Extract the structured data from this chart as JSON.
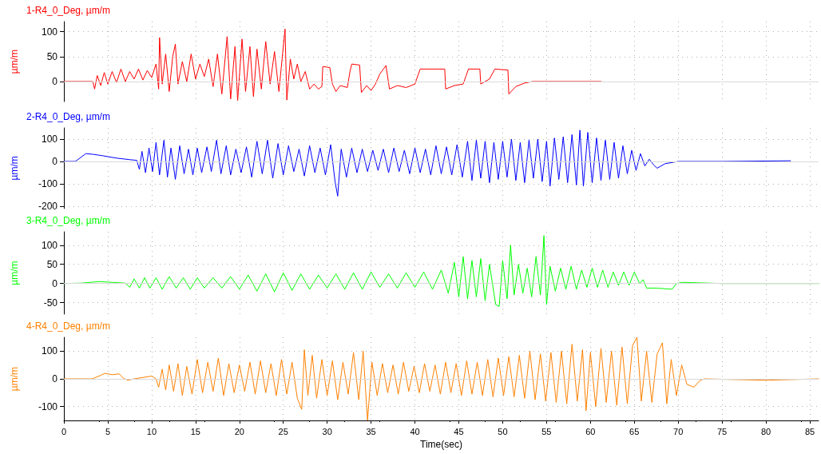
{
  "chart_data": [
    {
      "type": "line",
      "title": "1-R4_0_Deg, µm/m",
      "ylabel": "µm/m",
      "xlim": [
        0,
        86
      ],
      "xticks": [
        0,
        5,
        10,
        15,
        20,
        25,
        30,
        35,
        40,
        45,
        50,
        55,
        60,
        65,
        70,
        75,
        80,
        85
      ],
      "ylim": [
        -40,
        120
      ],
      "yticks": [
        0,
        50,
        100
      ],
      "grid": true,
      "tick_labels": "y",
      "ref_lines": [
        {
          "axis": "y",
          "value": 0,
          "color": "#d8d8d8"
        }
      ],
      "x": [
        0,
        3.3,
        3.5,
        3.8,
        4.2,
        4.6,
        5,
        5.5,
        6,
        6.5,
        7,
        7.5,
        8,
        8.5,
        9,
        9.5,
        10,
        10.5,
        10.8,
        10.9,
        11.2,
        11.6,
        12,
        12.4,
        12.7,
        13,
        13.5,
        14,
        14.5,
        15,
        15.5,
        16,
        16.5,
        17,
        17.5,
        18,
        18.6,
        19,
        19.5,
        19.8,
        20.3,
        20.7,
        21.2,
        21.6,
        22,
        22.5,
        23,
        23.5,
        24,
        24.5,
        25.2,
        25.4,
        25.8,
        26.2,
        26.6,
        27,
        27.5,
        28,
        28.5,
        29,
        29.4,
        29.5,
        30.3,
        30.6,
        31,
        31.5,
        32.3,
        32.6,
        32.8,
        33.7,
        33.9,
        34.5,
        35,
        35.5,
        36,
        36.7,
        37.1,
        38,
        39,
        40,
        40.2,
        40.6,
        43.4,
        43.5,
        44.5,
        45.5,
        45.8,
        46.1,
        47.4,
        47.5,
        48.5,
        49.1,
        50.6,
        50.7,
        51.5,
        52.5,
        53.4,
        61.2
      ],
      "series": [
        {
          "color": "#ff0000",
          "values": [
            0,
            0,
            -15,
            12,
            -8,
            18,
            -5,
            20,
            -2,
            25,
            0,
            20,
            5,
            25,
            3,
            22,
            8,
            35,
            -15,
            88,
            -5,
            55,
            -20,
            50,
            75,
            -5,
            40,
            0,
            55,
            5,
            35,
            10,
            45,
            -10,
            55,
            -25,
            90,
            -35,
            70,
            -38,
            85,
            -20,
            70,
            -30,
            65,
            -15,
            80,
            -5,
            60,
            -20,
            105,
            -37,
            45,
            5,
            35,
            0,
            20,
            -15,
            -5,
            -15,
            -10,
            30,
            28,
            -5,
            -20,
            -8,
            -12,
            20,
            35,
            33,
            -22,
            -8,
            -18,
            -5,
            15,
            32,
            -15,
            -8,
            -12,
            -5,
            5,
            25,
            25,
            -15,
            -8,
            -5,
            10,
            25,
            25,
            -5,
            5,
            25,
            23,
            -25,
            -10,
            -3,
            0,
            0
          ]
        }
      ]
    },
    {
      "type": "line",
      "title": "2-R4_0_Deg, µm/m",
      "ylabel": "µm/m",
      "xlim": [
        0,
        86
      ],
      "xticks": [
        0,
        5,
        10,
        15,
        20,
        25,
        30,
        35,
        40,
        45,
        50,
        55,
        60,
        65,
        70,
        75,
        80,
        85
      ],
      "ylim": [
        -210,
        150
      ],
      "yticks": [
        -200,
        -100,
        0,
        100
      ],
      "grid": true,
      "tick_labels": "y",
      "ref_lines": [
        {
          "axis": "y",
          "value": 0,
          "color": "#d8d8d8"
        }
      ],
      "x": [
        0,
        1.3,
        2,
        2.5,
        3.3,
        4.5,
        6,
        7.5,
        8.3,
        8.6,
        8.9,
        9.3,
        9.7,
        10.1,
        10.5,
        10.9,
        11.4,
        11.8,
        12.2,
        12.7,
        13.2,
        13.7,
        14.2,
        14.7,
        15.2,
        15.7,
        16.3,
        16.8,
        17.4,
        17.9,
        18.5,
        19,
        19.6,
        20.2,
        20.8,
        21.4,
        22,
        22.6,
        23.2,
        23.8,
        24.4,
        25,
        25.6,
        26.2,
        26.8,
        27.4,
        28,
        28.6,
        29.2,
        29.8,
        30.4,
        30.9,
        31.2,
        31.6,
        32.2,
        32.8,
        33.4,
        34,
        34.6,
        35.2,
        35.8,
        36.4,
        37,
        37.6,
        38.2,
        38.8,
        39.4,
        40,
        40.6,
        41.2,
        41.8,
        42.4,
        43,
        43.6,
        44.2,
        44.8,
        45.4,
        46,
        46.5,
        47,
        47.5,
        48,
        48.5,
        49,
        49.5,
        50,
        50.5,
        51,
        51.5,
        52,
        52.5,
        53,
        53.5,
        54,
        54.5,
        55,
        55.4,
        55.9,
        56.4,
        56.9,
        57.4,
        57.9,
        58.4,
        58.8,
        59.2,
        59.7,
        60.2,
        60.7,
        61.2,
        61.7,
        62.2,
        62.7,
        63.2,
        63.7,
        64.2,
        64.7,
        65.2,
        65.7,
        66.2,
        66.7,
        67.2,
        67.6,
        68.5,
        70,
        75,
        82.8
      ],
      "series": [
        {
          "color": "#0000ff",
          "values": [
            0,
            0,
            20,
            35,
            32,
            25,
            15,
            8,
            5,
            -35,
            45,
            -50,
            60,
            -45,
            85,
            -60,
            95,
            -70,
            60,
            -80,
            70,
            -55,
            55,
            -60,
            60,
            -50,
            65,
            -45,
            95,
            -55,
            70,
            -60,
            55,
            -50,
            65,
            -70,
            90,
            -55,
            95,
            -75,
            80,
            -60,
            70,
            -45,
            55,
            -65,
            70,
            -50,
            60,
            -60,
            75,
            -90,
            -155,
            55,
            -70,
            60,
            -50,
            55,
            -45,
            50,
            -40,
            55,
            -50,
            60,
            -45,
            50,
            -55,
            60,
            -50,
            55,
            -60,
            70,
            -55,
            65,
            -60,
            75,
            -70,
            90,
            -85,
            95,
            -75,
            90,
            -95,
            85,
            -80,
            90,
            -70,
            100,
            -85,
            85,
            -95,
            95,
            -75,
            100,
            -90,
            90,
            -110,
            105,
            -80,
            110,
            -95,
            120,
            -105,
            140,
            -110,
            130,
            -95,
            105,
            -85,
            95,
            -80,
            85,
            -75,
            70,
            -55,
            50,
            -40,
            35,
            -20,
            10,
            -15,
            -30,
            -10,
            0,
            0,
            3
          ]
        }
      ]
    },
    {
      "type": "line",
      "title": "3-R4_0_Deg, µm/m",
      "ylabel": "µm/m",
      "xlim": [
        0,
        86
      ],
      "xticks": [
        0,
        5,
        10,
        15,
        20,
        25,
        30,
        35,
        40,
        45,
        50,
        55,
        60,
        65,
        70,
        75,
        80,
        85
      ],
      "ylim": [
        -80,
        135
      ],
      "yticks": [
        -50,
        0,
        50,
        100
      ],
      "grid": true,
      "tick_labels": "y",
      "ref_lines": [
        {
          "axis": "y",
          "value": 0,
          "color": "#d8d8d8"
        }
      ],
      "x": [
        0,
        2,
        4,
        5.5,
        7,
        7.5,
        8,
        8.6,
        9.2,
        9.8,
        10.5,
        11.2,
        12,
        12.8,
        13.6,
        14.4,
        15.2,
        16,
        17,
        18,
        19,
        20,
        21,
        22,
        23,
        24,
        25,
        26,
        27,
        28,
        29,
        30,
        31,
        32,
        33,
        34,
        35,
        36,
        37,
        38,
        39,
        40,
        41,
        42,
        43,
        43.8,
        44.5,
        45,
        45.5,
        46,
        46.5,
        47,
        47.5,
        48,
        48.5,
        49.2,
        49.6,
        50,
        50.5,
        50.9,
        51.3,
        51.8,
        52.3,
        52.8,
        53.3,
        53.8,
        54.3,
        54.7,
        55,
        55.4,
        56,
        56.6,
        57.2,
        57.8,
        58.4,
        59,
        59.6,
        60.2,
        60.8,
        61.4,
        62,
        62.6,
        63.2,
        63.8,
        64.4,
        65,
        65.6,
        66,
        66.4,
        67.5,
        69.3,
        69.8,
        70.5,
        75,
        86
      ],
      "series": [
        {
          "color": "#00ff00",
          "values": [
            0,
            1,
            5,
            3,
            1,
            -10,
            12,
            -12,
            15,
            -12,
            15,
            -15,
            18,
            -12,
            15,
            -15,
            15,
            -12,
            15,
            -12,
            18,
            -15,
            22,
            -20,
            25,
            -22,
            28,
            -18,
            25,
            -15,
            22,
            -12,
            25,
            -15,
            28,
            -15,
            30,
            -10,
            25,
            -12,
            28,
            -10,
            30,
            -15,
            35,
            -25,
            55,
            -35,
            70,
            -40,
            60,
            -35,
            65,
            -45,
            50,
            -55,
            -60,
            60,
            -40,
            100,
            -30,
            50,
            -25,
            40,
            -35,
            70,
            -30,
            125,
            -55,
            45,
            -20,
            40,
            -15,
            45,
            -15,
            35,
            -10,
            40,
            -10,
            35,
            -10,
            30,
            -5,
            30,
            -5,
            30,
            0,
            10,
            -12,
            -12,
            -15,
            0,
            3,
            0,
            0
          ]
        }
      ]
    },
    {
      "type": "line",
      "title": "4-R4_0_Deg, µm/m",
      "xlabel": "Time(sec)",
      "ylabel": "µm/m",
      "xlim": [
        0,
        86
      ],
      "xticks": [
        0,
        5,
        10,
        15,
        20,
        25,
        30,
        35,
        40,
        45,
        50,
        55,
        60,
        65,
        70,
        75,
        80,
        85
      ],
      "ylim": [
        -150,
        150
      ],
      "yticks": [
        -100,
        0,
        100
      ],
      "grid": true,
      "ref_lines": [
        {
          "axis": "y",
          "value": 0,
          "color": "#d8d8d8"
        }
      ],
      "x": [
        0,
        3.2,
        4,
        4.7,
        5.5,
        6.3,
        6.8,
        7.3,
        8,
        9,
        10,
        10.5,
        10.8,
        11.2,
        11.6,
        12,
        12.5,
        13,
        13.5,
        14,
        14.6,
        15.2,
        15.8,
        16.4,
        17,
        17.6,
        18.2,
        18.8,
        19.4,
        20,
        20.6,
        21.2,
        21.8,
        22.4,
        23,
        23.6,
        24.2,
        24.8,
        25.4,
        26,
        26.6,
        27.1,
        27.4,
        27.8,
        28.3,
        28.8,
        29.4,
        30,
        30.6,
        31.2,
        31.8,
        32.4,
        33,
        33.6,
        34.1,
        34.6,
        35.1,
        35.7,
        36.3,
        36.9,
        37.5,
        38.1,
        38.7,
        39.3,
        39.9,
        40.5,
        41.1,
        41.7,
        42.3,
        42.9,
        43.5,
        44.1,
        44.7,
        45.3,
        45.9,
        46.5,
        47.1,
        47.7,
        48.3,
        48.9,
        49.5,
        50.1,
        50.7,
        51.3,
        51.9,
        52.5,
        53.1,
        53.7,
        54.3,
        54.9,
        55.5,
        56.1,
        56.7,
        57.3,
        57.9,
        58.5,
        59.1,
        59.5,
        60,
        60.6,
        61.2,
        61.8,
        62.4,
        63,
        63.6,
        64.2,
        64.8,
        65.3,
        65.8,
        66.4,
        67,
        67.6,
        68.2,
        68.7,
        69.2,
        69.8,
        70.4,
        71,
        71.8,
        72.5,
        73,
        80,
        86
      ],
      "series": [
        {
          "color": "#ff8000",
          "values": [
            0,
            0,
            10,
            20,
            15,
            18,
            2,
            -5,
            0,
            5,
            10,
            0,
            -30,
            35,
            -40,
            50,
            -45,
            55,
            -60,
            45,
            -55,
            70,
            -50,
            60,
            -45,
            75,
            -60,
            55,
            -50,
            50,
            -45,
            60,
            -55,
            65,
            -50,
            55,
            -60,
            70,
            -55,
            60,
            -70,
            -110,
            105,
            -60,
            85,
            -70,
            70,
            -60,
            65,
            -75,
            60,
            -55,
            95,
            -75,
            100,
            -150,
            60,
            -60,
            55,
            -50,
            50,
            -55,
            60,
            -45,
            45,
            -50,
            55,
            -45,
            50,
            -55,
            60,
            -50,
            55,
            -60,
            65,
            -55,
            60,
            -60,
            70,
            -65,
            75,
            -60,
            80,
            -65,
            85,
            -70,
            100,
            -75,
            90,
            -80,
            95,
            -85,
            100,
            -90,
            125,
            -80,
            105,
            -115,
            95,
            -100,
            110,
            -85,
            100,
            -95,
            115,
            -90,
            120,
            150,
            -80,
            100,
            -85,
            90,
            130,
            -90,
            70,
            -60,
            50,
            -20,
            -30,
            -5,
            0,
            -5,
            0
          ]
        }
      ]
    }
  ]
}
